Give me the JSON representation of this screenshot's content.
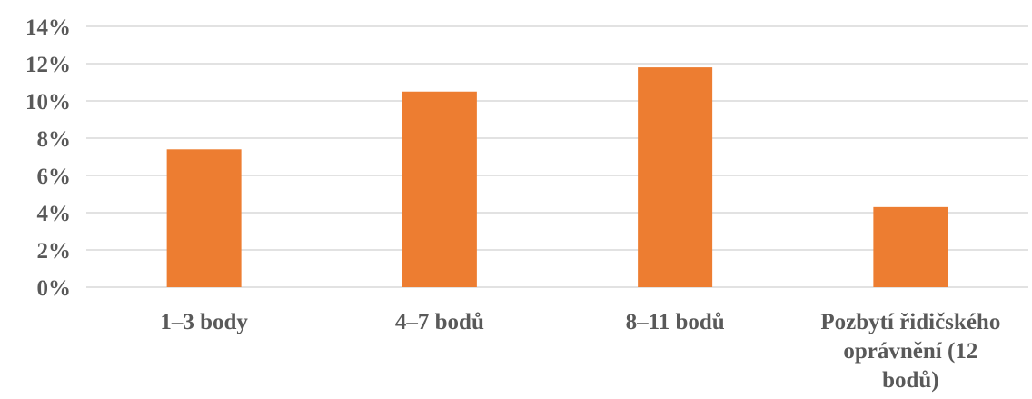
{
  "chart_data": {
    "type": "bar",
    "categories": [
      [
        "1–3 body"
      ],
      [
        "4–7 bodů"
      ],
      [
        "8–11 bodů"
      ],
      [
        "Pozbytí řidičského",
        "oprávnění (12",
        "bodů)"
      ]
    ],
    "values": [
      7.4,
      10.5,
      11.8,
      4.3
    ],
    "ylim": [
      0,
      14
    ],
    "ytick_values": [
      0,
      2,
      4,
      6,
      8,
      10,
      12,
      14
    ],
    "ytick_labels": [
      "0%",
      "2%",
      "4%",
      "6%",
      "8%",
      "10%",
      "12%",
      "14%"
    ],
    "grid": true,
    "bar_color": "#ED7D31",
    "title": "",
    "xlabel": "",
    "ylabel": ""
  }
}
